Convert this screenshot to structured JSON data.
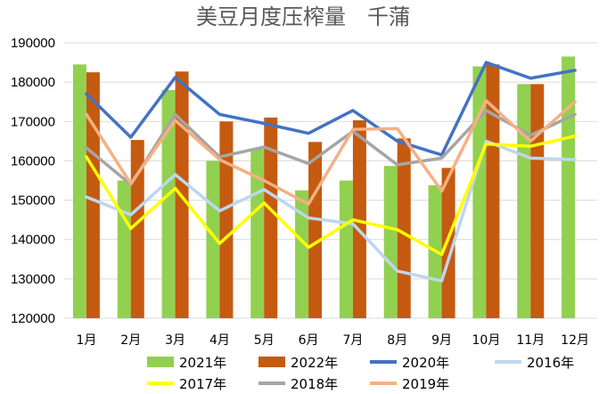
{
  "chart_data": {
    "type": "bar",
    "title": "美豆月度压榨量　千蒲",
    "categories": [
      "1月",
      "2月",
      "3月",
      "4月",
      "5月",
      "6月",
      "7月",
      "8月",
      "9月",
      "10月",
      "11月",
      "12月"
    ],
    "ylim": [
      120000,
      190000
    ],
    "yticks": [
      "120000",
      "130000",
      "140000",
      "150000",
      "160000",
      "170000",
      "180000",
      "190000"
    ],
    "grid": true,
    "legend_position": "bottom",
    "series": [
      {
        "name": "2021年",
        "kind": "bar",
        "color": "#92d050",
        "values": [
          184500,
          155000,
          178000,
          160000,
          163000,
          152500,
          155000,
          158700,
          153800,
          184000,
          179500,
          186500
        ]
      },
      {
        "name": "2022年",
        "kind": "bar",
        "color": "#c55a11",
        "values": [
          182500,
          165300,
          182700,
          170000,
          171000,
          164800,
          170300,
          165700,
          158200,
          184500,
          179500,
          null
        ]
      },
      {
        "name": "2020年",
        "kind": "line",
        "color": "#4472c4",
        "values": [
          177000,
          166000,
          181200,
          171800,
          169500,
          167000,
          172800,
          165000,
          161500,
          185000,
          181000,
          183000
        ]
      },
      {
        "name": "2016年",
        "kind": "line",
        "color": "#bdd7ee",
        "values": [
          150800,
          146300,
          156500,
          147300,
          152700,
          145500,
          144000,
          132000,
          129500,
          165000,
          160700,
          160300
        ]
      },
      {
        "name": "2017年",
        "kind": "line",
        "color": "#ffff00",
        "values": [
          161000,
          142800,
          153000,
          139000,
          149300,
          138000,
          145000,
          142500,
          136200,
          164300,
          163700,
          166300
        ]
      },
      {
        "name": "2018年",
        "kind": "line",
        "color": "#a5a5a5",
        "values": [
          163300,
          154000,
          171800,
          161000,
          163500,
          159300,
          167500,
          159000,
          160700,
          172800,
          166500,
          171800
        ]
      },
      {
        "name": "2019年",
        "kind": "line",
        "color": "#f4b183",
        "values": [
          171800,
          154200,
          170300,
          160300,
          155000,
          149000,
          168000,
          168200,
          152300,
          175300,
          165000,
          175000
        ]
      }
    ]
  }
}
